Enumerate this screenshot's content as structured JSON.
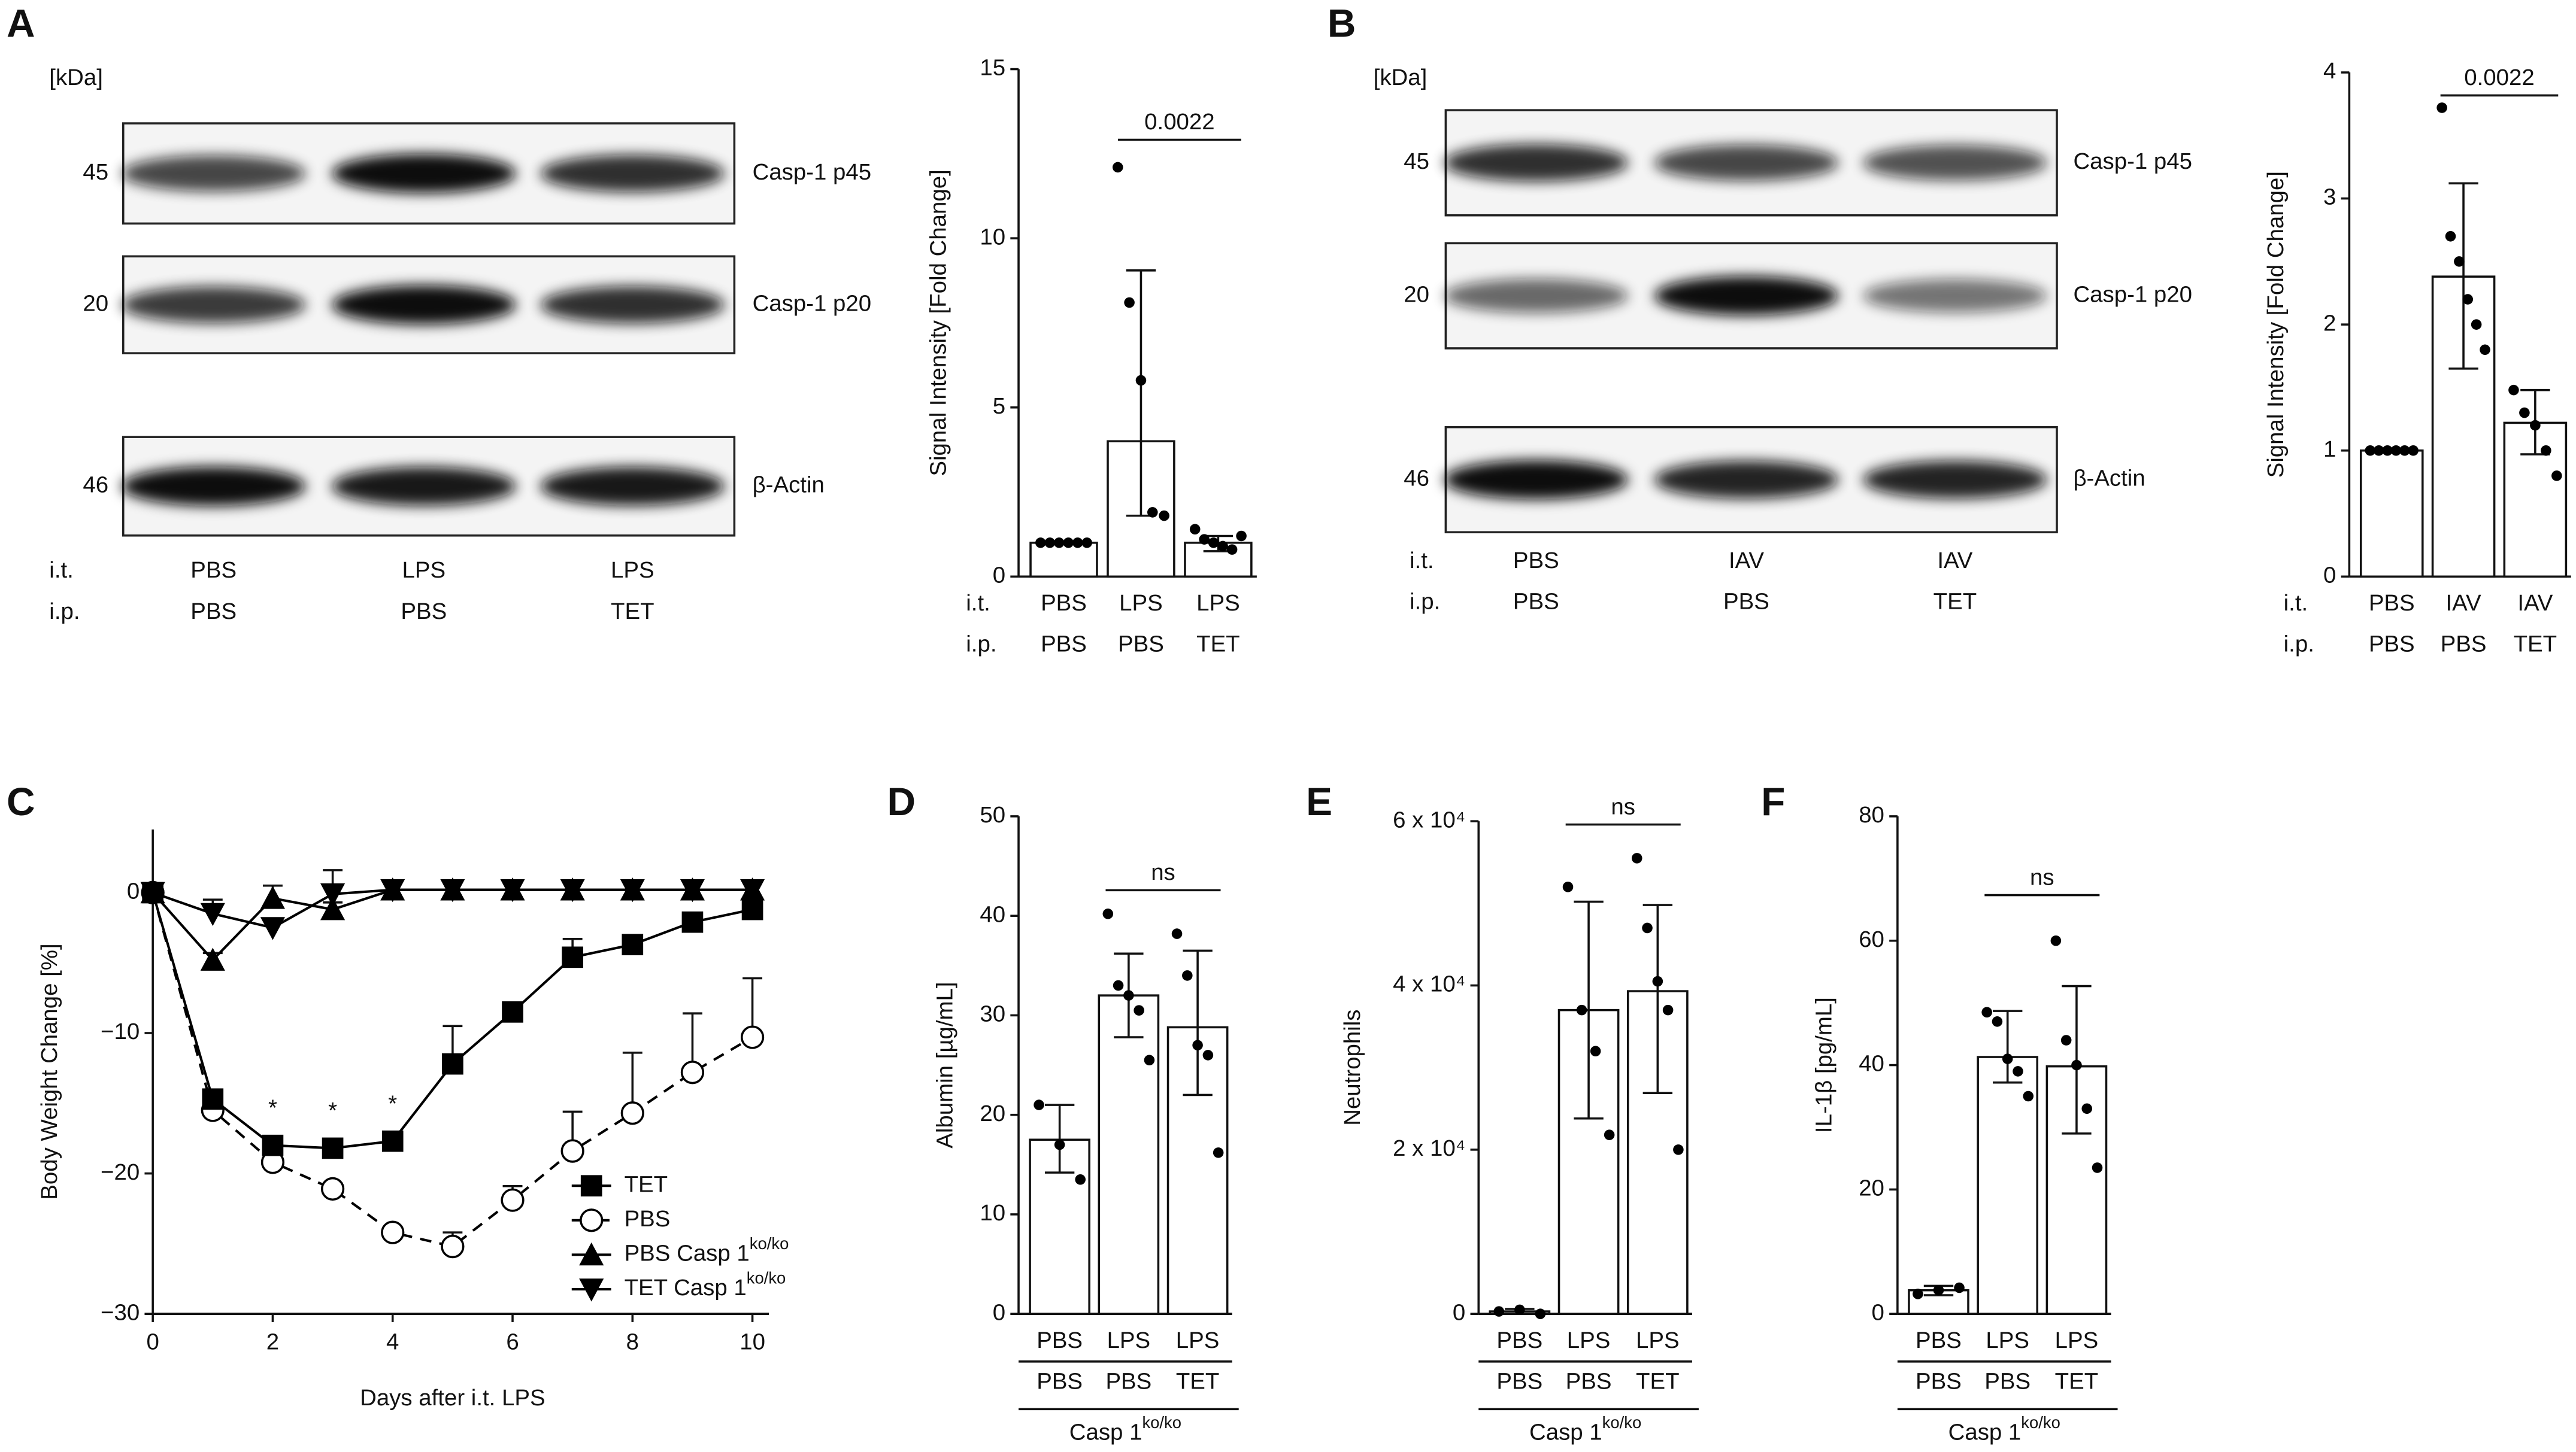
{
  "panel_labels": [
    "A",
    "B",
    "C",
    "D",
    "E",
    "F"
  ],
  "blots": [
    {
      "unit": "[kDa]",
      "bands": [
        {
          "mw": "45",
          "name": "Casp-1 p45"
        },
        {
          "mw": "20",
          "name": "Casp-1 p20"
        },
        {
          "mw": "46",
          "name": "β-Actin"
        }
      ],
      "lane_rows": [
        {
          "name": "i.t.",
          "labels": [
            "PBS",
            "LPS",
            "LPS"
          ]
        },
        {
          "name": "i.p.",
          "labels": [
            "PBS",
            "PBS",
            "TET"
          ]
        }
      ]
    },
    {
      "unit": "[kDa]",
      "bands": [
        {
          "mw": "45",
          "name": "Casp-1 p45"
        },
        {
          "mw": "20",
          "name": "Casp-1 p20"
        },
        {
          "mw": "46",
          "name": "β-Actin"
        }
      ],
      "lane_rows": [
        {
          "name": "i.t.",
          "labels": [
            "PBS",
            "IAV",
            "IAV"
          ]
        },
        {
          "name": "i.p.",
          "labels": [
            "PBS",
            "PBS",
            "TET"
          ]
        }
      ]
    }
  ],
  "chart_data": [
    {
      "type": "bar",
      "ylabel": "Signal Intensity [Fold Change]",
      "category_rows": [
        {
          "name": "i.t.",
          "labels": [
            "PBS",
            "LPS",
            "LPS"
          ]
        },
        {
          "name": "i.p.",
          "labels": [
            "PBS",
            "PBS",
            "TET"
          ]
        }
      ],
      "values": [
        1,
        4.0,
        1.0
      ],
      "error_bars": [
        [
          1,
          1
        ],
        [
          1.8,
          9.05
        ],
        [
          0.75,
          1.2
        ]
      ],
      "points": [
        [
          1,
          1,
          1,
          1,
          1,
          1
        ],
        [
          12.1,
          8.1,
          5.8,
          1.9,
          1.8
        ],
        [
          1.4,
          1.1,
          1.0,
          0.9,
          0.8,
          1.2
        ]
      ],
      "annotation": "0.0022",
      "color": "#ffffff",
      "point_color": "#000000",
      "ylim": [
        0,
        15
      ],
      "yticks": [
        0,
        5,
        10,
        15
      ]
    },
    {
      "type": "bar",
      "ylabel": "Signal Intensity [Fold Change]",
      "category_rows": [
        {
          "name": "i.t.",
          "labels": [
            "PBS",
            "IAV",
            "IAV"
          ]
        },
        {
          "name": "i.p.",
          "labels": [
            "PBS",
            "PBS",
            "TET"
          ]
        }
      ],
      "values": [
        1.0,
        2.38,
        1.22
      ],
      "error_bars": [
        [
          1,
          1
        ],
        [
          1.65,
          3.12
        ],
        [
          0.97,
          1.48
        ]
      ],
      "points": [
        [
          1,
          1,
          1,
          1,
          1,
          1
        ],
        [
          3.72,
          2.7,
          2.5,
          2.2,
          2.0,
          1.8
        ],
        [
          1.48,
          1.3,
          1.2,
          1.0,
          0.8
        ]
      ],
      "annotation": "0.0022",
      "color": "#ffffff",
      "point_color": "#000000",
      "ylim": [
        0,
        4
      ],
      "yticks": [
        0,
        1,
        2,
        3,
        4
      ]
    },
    {
      "type": "line",
      "xlabel": "Days after i.t. LPS",
      "ylabel": "Body Weight Change [%]",
      "x": [
        0,
        1,
        2,
        3,
        4,
        5,
        6,
        7,
        8,
        9,
        10
      ],
      "series": [
        {
          "name": "TET",
          "marker": "square",
          "dashed": false,
          "color": "#000000",
          "values": [
            0,
            -14.7,
            -18,
            -18.2,
            -17.7,
            -12.2,
            -8.5,
            -4.6,
            -3.7,
            -2.1,
            -1.2
          ],
          "errors": [
            0,
            0.5,
            0.6,
            0.6,
            0.6,
            2.7,
            0.6,
            1.3,
            0.5,
            0.5,
            0.5
          ]
        },
        {
          "name": "PBS",
          "marker": "circle",
          "dashed": true,
          "color": "#000000",
          "values": [
            0,
            -15.5,
            -19.2,
            -21.1,
            -24.2,
            -25.2,
            -21.9,
            -18.4,
            -15.7,
            -12.8,
            -10.3
          ],
          "errors": [
            0,
            0.5,
            0.4,
            0.4,
            0.4,
            1.0,
            1.0,
            2.8,
            4.3,
            4.2,
            4.2
          ]
        },
        {
          "name": "PBS Casp 1",
          "superscript": "ko/ko",
          "marker": "triangle-up",
          "dashed": false,
          "color": "#000000",
          "values": [
            0,
            -4.8,
            -0.4,
            -1.2,
            0.2,
            0.2,
            0.2,
            0.2,
            0.2,
            0.2,
            0.2
          ],
          "errors": [
            0,
            0.5,
            0.9,
            0.5,
            0,
            0,
            0,
            0,
            0,
            0,
            0
          ]
        },
        {
          "name": "TET Casp 1",
          "superscript": "ko/ko",
          "marker": "triangle-down",
          "dashed": false,
          "color": "#000000",
          "values": [
            0,
            -1.5,
            -2.5,
            -0.1,
            0.2,
            0.2,
            0.2,
            0.2,
            0.2,
            0.2,
            0.2
          ],
          "errors": [
            0,
            1.0,
            0.5,
            1.7,
            0,
            0,
            0,
            0,
            0,
            0,
            0
          ]
        }
      ],
      "annotations": [
        {
          "text": "*",
          "x": 2
        },
        {
          "text": "*",
          "x": 3
        },
        {
          "text": "*",
          "x": 4
        }
      ],
      "legend": "lower right",
      "xlim": [
        0,
        10
      ],
      "xticks": [
        0,
        2,
        4,
        6,
        8,
        10
      ],
      "ylim": [
        -30,
        4.5
      ],
      "yticks": [
        {
          "value": -30,
          "label": "−30"
        },
        {
          "value": -20,
          "label": "−20"
        },
        {
          "value": -10,
          "label": "−10"
        },
        0
      ]
    },
    {
      "type": "bar",
      "ylabel": "Albumin [µg/mL]",
      "category_rows": [
        {
          "labels": [
            "PBS",
            "LPS",
            "LPS"
          ]
        },
        {
          "labels": [
            "PBS",
            "PBS",
            "TET"
          ]
        }
      ],
      "group": {
        "name": "Casp 1",
        "superscript": "ko/ko"
      },
      "values": [
        17.5,
        32,
        28.8
      ],
      "error_bars": [
        [
          14.2,
          21
        ],
        [
          27.8,
          36.2
        ],
        [
          22,
          36.5
        ]
      ],
      "points": [
        [
          21,
          17,
          13.5
        ],
        [
          40.2,
          33,
          32,
          30.5,
          25.5
        ],
        [
          38.2,
          34,
          27,
          26,
          16.2
        ]
      ],
      "annotation": "ns",
      "color": "#ffffff",
      "point_color": "#000000",
      "ylim": [
        0,
        50
      ],
      "yticks": [
        0,
        10,
        20,
        30,
        40,
        50
      ]
    },
    {
      "type": "bar",
      "ylabel": "Neutrophils",
      "category_rows": [
        {
          "labels": [
            "PBS",
            "LPS",
            "LPS"
          ]
        },
        {
          "labels": [
            "PBS",
            "PBS",
            "TET"
          ]
        }
      ],
      "group": {
        "name": "Casp 1",
        "superscript": "ko/ko"
      },
      "values": [
        300,
        37000,
        39300
      ],
      "error_bars": [
        [
          0,
          600
        ],
        [
          23800,
          50200
        ],
        [
          26900,
          49800
        ]
      ],
      "points": [
        [
          300,
          500,
          0
        ],
        [
          52000,
          37000,
          32000,
          21800
        ],
        [
          55500,
          47000,
          40500,
          37000,
          20000
        ]
      ],
      "annotation": "ns",
      "color": "#ffffff",
      "point_color": "#000000",
      "ylim": [
        0,
        60000
      ],
      "yticks": [
        0,
        {
          "value": 20000,
          "label": "2 x 10⁴"
        },
        {
          "value": 40000,
          "label": "4 x 10⁴"
        },
        {
          "value": 60000,
          "label": "6 x 10⁴"
        }
      ]
    },
    {
      "type": "bar",
      "ylabel": "IL-1β [pg/mL]",
      "category_rows": [
        {
          "labels": [
            "PBS",
            "LPS",
            "LPS"
          ]
        },
        {
          "labels": [
            "PBS",
            "PBS",
            "TET"
          ]
        }
      ],
      "group": {
        "name": "Casp 1",
        "superscript": "ko/ko"
      },
      "values": [
        3.8,
        41.3,
        39.8
      ],
      "error_bars": [
        [
          3,
          4.5
        ],
        [
          37.2,
          48.7
        ],
        [
          29,
          52.7
        ]
      ],
      "points": [
        [
          3.2,
          3.8,
          4.2
        ],
        [
          48.5,
          47,
          41,
          39,
          35
        ],
        [
          60,
          44,
          40,
          33,
          23.5
        ]
      ],
      "annotation": "ns",
      "color": "#ffffff",
      "point_color": "#000000",
      "ylim": [
        0,
        80
      ],
      "yticks": [
        0,
        20,
        40,
        60,
        80
      ]
    }
  ]
}
